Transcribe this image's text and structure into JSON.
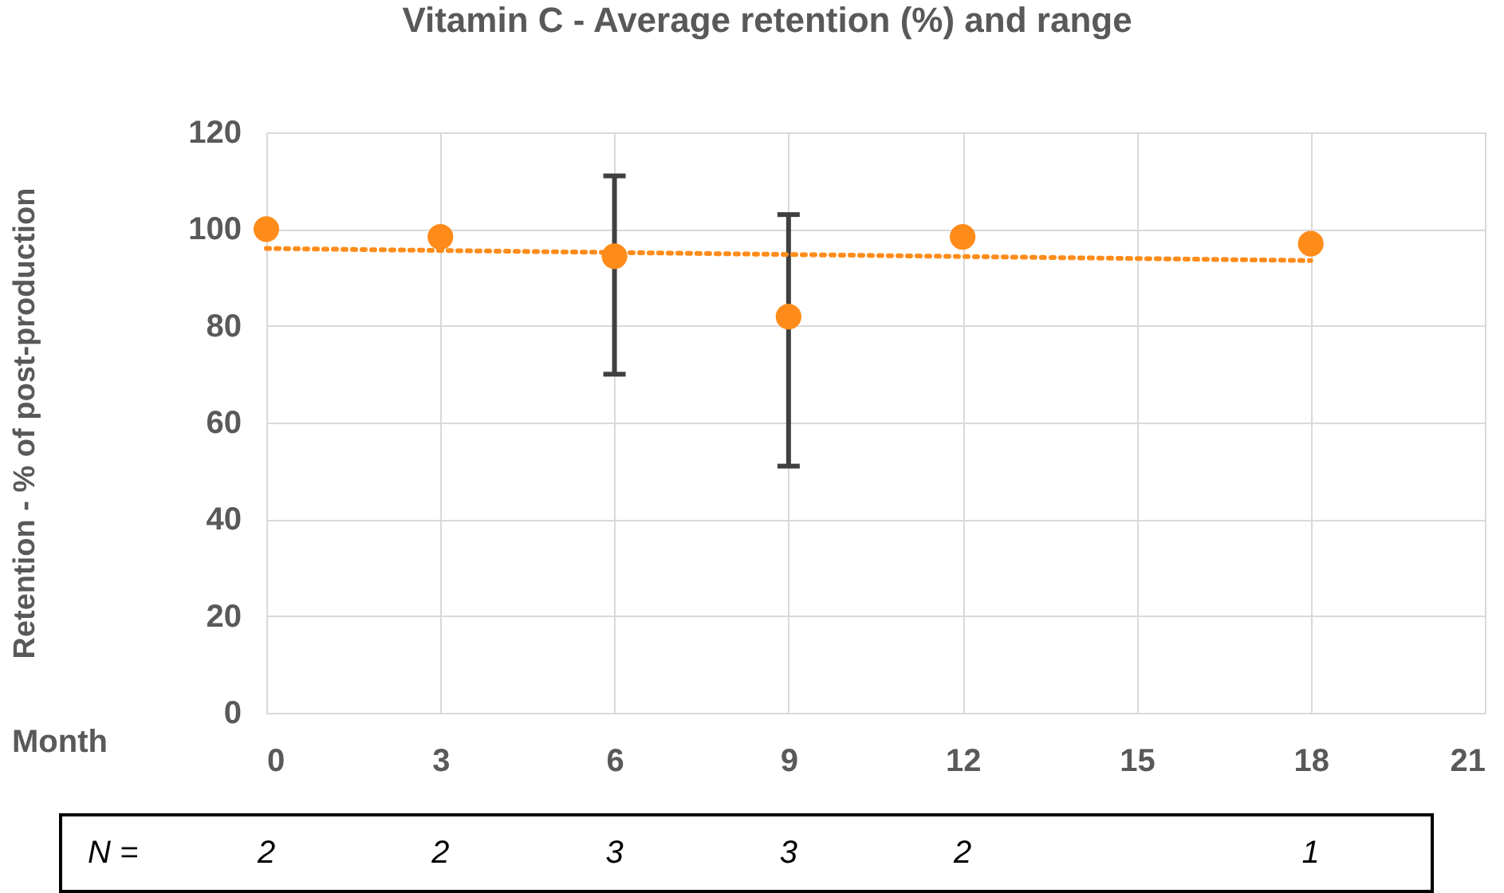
{
  "chart_data": {
    "type": "scatter",
    "title": "Vitamin C - Average retention (%) and range",
    "xlabel": "Month",
    "ylabel": "Retention - % of post-production",
    "x": [
      0,
      3,
      6,
      9,
      12,
      18
    ],
    "series": [
      {
        "color": "#ff8c1a",
        "values": [
          100,
          98.4,
          94.4,
          81.9,
          98.4,
          97
        ],
        "errors": [
          null,
          null,
          [
            70,
            111
          ],
          [
            51,
            103
          ],
          null,
          null
        ]
      },
      {
        "type": "line",
        "color": "#ff8c1a",
        "line_style": "dotted",
        "marker": "none",
        "x": [
          0,
          18
        ],
        "values": [
          96,
          93.5
        ]
      }
    ],
    "xlim": [
      0,
      21
    ],
    "xticks": [
      0,
      3,
      6,
      9,
      12,
      15,
      18,
      21
    ],
    "ylim": [
      0,
      120
    ],
    "yticks": [
      0,
      20,
      40,
      60,
      80,
      100,
      120
    ],
    "grid": true,
    "marker": "circle",
    "annotations": [
      "N =",
      "2",
      "2",
      "3",
      "3",
      "2",
      "1"
    ]
  }
}
